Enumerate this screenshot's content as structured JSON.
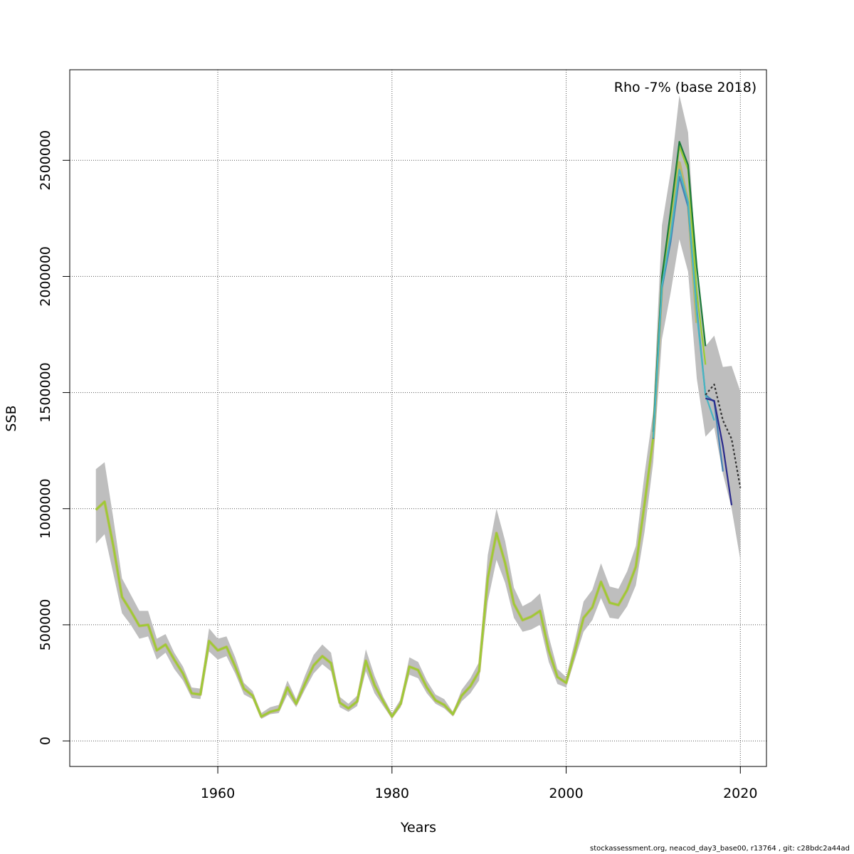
{
  "footer": "stockassessment.org, neacod_day3_base00, r13764 , git: c28bdc2a44ad",
  "chart_data": {
    "type": "line",
    "title": "",
    "annotation": "Rho -7% (base 2018)",
    "xlabel": "Years",
    "ylabel": "SSB",
    "xlim": [
      1943,
      2023
    ],
    "ylim": [
      -110000,
      2890000
    ],
    "x_ticks": [
      1960,
      1980,
      2000,
      2020
    ],
    "y_ticks": [
      0,
      500000,
      1000000,
      1500000,
      2000000,
      2500000
    ],
    "grid": true,
    "ci_band": {
      "color": "#bebebe",
      "years": [
        1946,
        1947,
        1948,
        1949,
        1950,
        1951,
        1952,
        1953,
        1954,
        1955,
        1956,
        1957,
        1958,
        1959,
        1960,
        1961,
        1962,
        1963,
        1964,
        1965,
        1966,
        1967,
        1968,
        1969,
        1970,
        1971,
        1972,
        1973,
        1974,
        1975,
        1976,
        1977,
        1978,
        1979,
        1980,
        1981,
        1982,
        1983,
        1984,
        1985,
        1986,
        1987,
        1988,
        1989,
        1990,
        1991,
        1992,
        1993,
        1994,
        1995,
        1996,
        1997,
        1998,
        1999,
        2000,
        2001,
        2002,
        2003,
        2004,
        2005,
        2006,
        2007,
        2008,
        2009,
        2010,
        2011,
        2012,
        2013,
        2014,
        2015,
        2016,
        2017,
        2018,
        2019,
        2020
      ],
      "upper": [
        1170000,
        1200000,
        960000,
        700000,
        630000,
        560000,
        560000,
        440000,
        460000,
        380000,
        320000,
        230000,
        225000,
        485000,
        440000,
        450000,
        360000,
        250000,
        215000,
        120000,
        145000,
        155000,
        260000,
        180000,
        280000,
        370000,
        415000,
        380000,
        190000,
        160000,
        195000,
        395000,
        280000,
        190000,
        120000,
        180000,
        360000,
        340000,
        260000,
        200000,
        180000,
        125000,
        220000,
        270000,
        340000,
        800000,
        1000000,
        860000,
        660000,
        580000,
        600000,
        635000,
        450000,
        310000,
        275000,
        430000,
        600000,
        650000,
        765000,
        665000,
        655000,
        730000,
        840000,
        1150000,
        1420000,
        2220000,
        2450000,
        2780000,
        2620000,
        2000000,
        1700000,
        1745000,
        1610000,
        1615000,
        1505000
      ],
      "lower": [
        850000,
        890000,
        720000,
        550000,
        500000,
        440000,
        450000,
        350000,
        380000,
        310000,
        260000,
        185000,
        180000,
        385000,
        350000,
        365000,
        290000,
        200000,
        180000,
        95000,
        115000,
        120000,
        200000,
        145000,
        220000,
        290000,
        330000,
        300000,
        145000,
        125000,
        150000,
        300000,
        205000,
        150000,
        95000,
        145000,
        285000,
        270000,
        205000,
        160000,
        140000,
        105000,
        170000,
        205000,
        260000,
        600000,
        780000,
        680000,
        530000,
        470000,
        480000,
        500000,
        340000,
        245000,
        230000,
        350000,
        470000,
        520000,
        615000,
        530000,
        525000,
        580000,
        670000,
        900000,
        1200000,
        1730000,
        1930000,
        2160000,
        2020000,
        1560000,
        1310000,
        1350000,
        1150000,
        1000000,
        780000
      ]
    },
    "series": [
      {
        "color": "#bdb76b",
        "x": [
          1946,
          1947,
          1948,
          1949,
          1950,
          1951,
          1952,
          1953,
          1954,
          1955,
          1956,
          1957,
          1958,
          1959,
          1960,
          1961,
          1962,
          1963,
          1964,
          1965,
          1966,
          1967,
          1968,
          1969,
          1970,
          1971,
          1972,
          1973,
          1974,
          1975,
          1976,
          1977,
          1978,
          1979,
          1980,
          1981,
          1982,
          1983,
          1984,
          1985,
          1986,
          1987,
          1988,
          1989,
          1990,
          1991,
          1992,
          1993,
          1994,
          1995,
          1996,
          1997,
          1998,
          1999,
          2000,
          2001,
          2002,
          2003,
          2004,
          2005,
          2006,
          2007,
          2008,
          2009,
          2010,
          2011,
          2012,
          2013,
          2014,
          2015
        ],
        "y": [
          995000,
          1030000,
          840000,
          620000,
          560000,
          495000,
          500000,
          390000,
          415000,
          350000,
          290000,
          205000,
          200000,
          430000,
          390000,
          405000,
          320000,
          225000,
          195000,
          105000,
          125000,
          135000,
          230000,
          160000,
          245000,
          325000,
          365000,
          335000,
          165000,
          140000,
          170000,
          345000,
          240000,
          170000,
          105000,
          160000,
          320000,
          305000,
          230000,
          175000,
          155000,
          115000,
          195000,
          235000,
          300000,
          700000,
          895000,
          765000,
          590000,
          520000,
          535000,
          560000,
          390000,
          275000,
          250000,
          385000,
          530000,
          575000,
          685000,
          595000,
          585000,
          650000,
          750000,
          1020000,
          1300000,
          1960000,
          2200000,
          2490000,
          2320000,
          1800000
        ]
      },
      {
        "color": "#9acd32",
        "x": [
          1946,
          1947,
          1948,
          1949,
          1950,
          1951,
          1952,
          1953,
          1954,
          1955,
          1956,
          1957,
          1958,
          1959,
          1960,
          1961,
          1962,
          1963,
          1964,
          1965,
          1966,
          1967,
          1968,
          1969,
          1970,
          1971,
          1972,
          1973,
          1974,
          1975,
          1976,
          1977,
          1978,
          1979,
          1980,
          1981,
          1982,
          1983,
          1984,
          1985,
          1986,
          1987,
          1988,
          1989,
          1990,
          1991,
          1992,
          1993,
          1994,
          1995,
          1996,
          1997,
          1998,
          1999,
          2000,
          2001,
          2002,
          2003,
          2004,
          2005,
          2006,
          2007,
          2008,
          2009,
          2010,
          2011,
          2012,
          2013,
          2014,
          2015,
          2016
        ],
        "y": [
          995000,
          1030000,
          840000,
          620000,
          560000,
          495000,
          500000,
          390000,
          415000,
          350000,
          290000,
          205000,
          200000,
          430000,
          390000,
          405000,
          320000,
          225000,
          195000,
          105000,
          125000,
          135000,
          230000,
          160000,
          245000,
          325000,
          365000,
          335000,
          165000,
          140000,
          170000,
          345000,
          240000,
          170000,
          105000,
          160000,
          320000,
          305000,
          230000,
          175000,
          155000,
          115000,
          195000,
          235000,
          300000,
          700000,
          895000,
          765000,
          590000,
          520000,
          535000,
          560000,
          390000,
          275000,
          250000,
          385000,
          530000,
          575000,
          685000,
          595000,
          585000,
          650000,
          750000,
          1020000,
          1310000,
          1990000,
          2260000,
          2560000,
          2460000,
          1930000,
          1620000
        ]
      },
      {
        "color": "#1c7a3a",
        "x": [
          2010,
          2011,
          2012,
          2013,
          2014,
          2015,
          2016
        ],
        "y": [
          1330000,
          2000000,
          2280000,
          2580000,
          2480000,
          2040000,
          1700000
        ]
      },
      {
        "color": "#4682b4",
        "x": [
          2010,
          2011,
          2012,
          2013,
          2014,
          2015,
          2016,
          2017,
          2018
        ],
        "y": [
          1300000,
          1950000,
          2150000,
          2430000,
          2300000,
          1860000,
          1490000,
          1460000,
          1160000
        ]
      },
      {
        "color": "#48b6c2",
        "x": [
          2010,
          2011,
          2012,
          2013,
          2014,
          2015,
          2016,
          2017
        ],
        "y": [
          1305000,
          1960000,
          2180000,
          2460000,
          2320000,
          1840000,
          1490000,
          1380000
        ]
      },
      {
        "color": "#2a2a8c",
        "x": [
          2016,
          2017,
          2018,
          2019
        ],
        "y": [
          1475000,
          1465000,
          1270000,
          1015000
        ]
      },
      {
        "color": "#333333",
        "dashed": true,
        "x": [
          2016,
          2017,
          2018,
          2019,
          2020
        ],
        "y": [
          1490000,
          1535000,
          1380000,
          1300000,
          1090000
        ]
      }
    ]
  }
}
